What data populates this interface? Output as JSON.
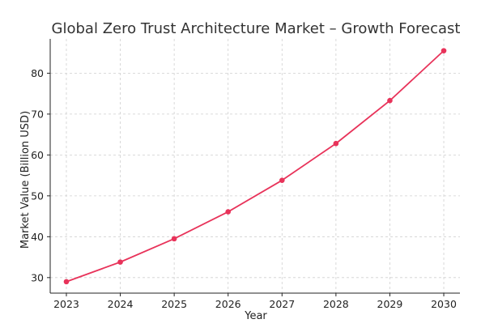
{
  "chart_data": {
    "type": "line",
    "title": "Global Zero Trust Architecture Market – Growth Forecast",
    "xlabel": "Year",
    "ylabel": "Market Value (Billion USD)",
    "x": [
      2023,
      2024,
      2025,
      2026,
      2027,
      2028,
      2029,
      2030
    ],
    "series": [
      {
        "values": [
          29.0,
          33.8,
          39.5,
          46.1,
          53.8,
          62.8,
          73.3,
          85.5
        ]
      }
    ],
    "xlim": [
      2022.7,
      2030.3
    ],
    "ylim": [
      26.2,
      88.4
    ],
    "x_ticks": [
      2023,
      2024,
      2025,
      2026,
      2027,
      2028,
      2029,
      2030
    ],
    "y_ticks": [
      30,
      40,
      50,
      60,
      70,
      80
    ],
    "grid": true,
    "colors": {
      "line": "#e8335a",
      "grid": "#cfcfcf",
      "axis": "#222222",
      "title": "#333333"
    }
  }
}
